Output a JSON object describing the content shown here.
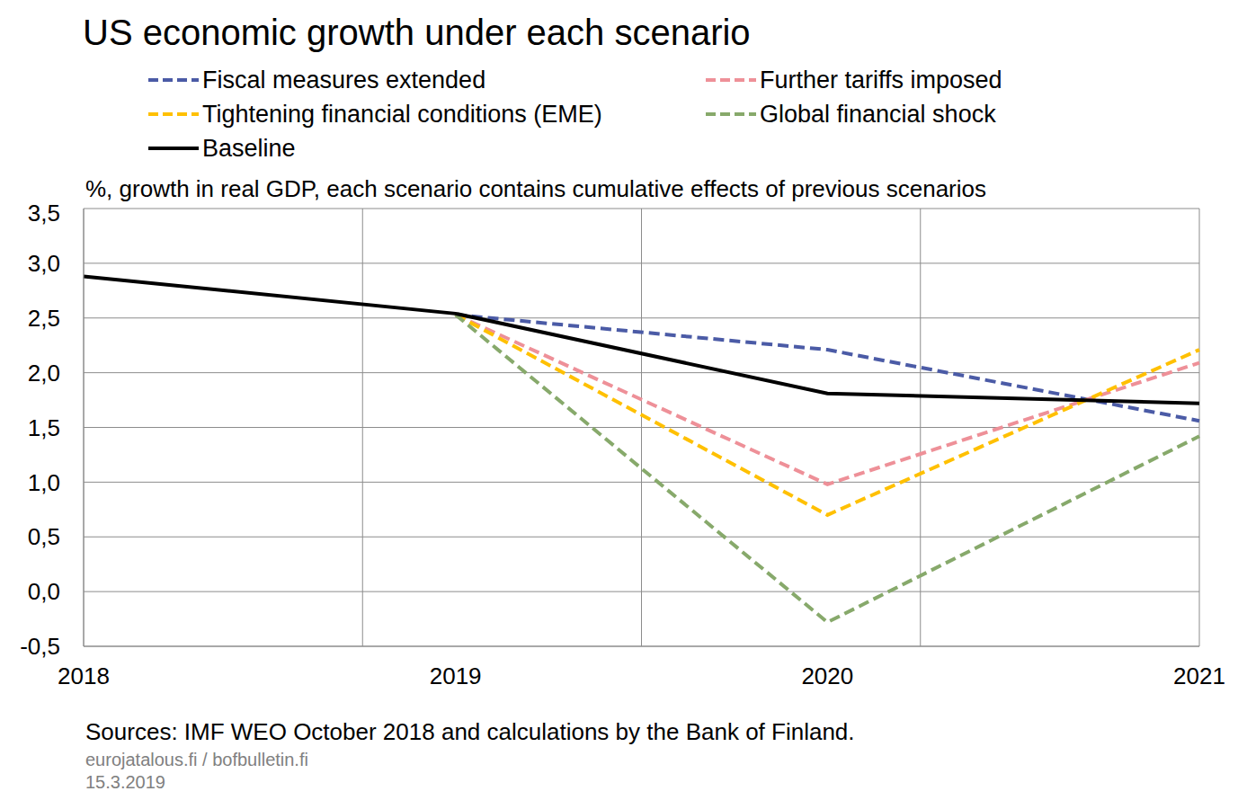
{
  "chart_data": {
    "type": "line",
    "title": "US economic growth under each scenario",
    "subtitle": "%, growth in real GDP, each scenario contains cumulative effects of previous scenarios",
    "source": "Sources: IMF WEO October 2018 and calculations by the Bank of Finland.",
    "footer": [
      "eurojatalous.fi / bofbulletin.fi",
      "15.3.2019"
    ],
    "categories": [
      "2018",
      "2019",
      "2020",
      "2021"
    ],
    "series": [
      {
        "name": "Fiscal measures extended",
        "color": "#4B5BA6",
        "line_style": "dashed",
        "values": [
          null,
          2.53,
          2.21,
          1.56
        ]
      },
      {
        "name": "Further tariffs imposed",
        "color": "#EE9098",
        "line_style": "dashed",
        "values": [
          null,
          2.53,
          0.98,
          2.09
        ]
      },
      {
        "name": "Tightening financial conditions (EME)",
        "color": "#FFC000",
        "line_style": "dashed",
        "values": [
          null,
          2.53,
          0.7,
          2.21
        ]
      },
      {
        "name": "Global financial shock",
        "color": "#87A96B",
        "line_style": "dashed",
        "values": [
          null,
          2.53,
          -0.28,
          1.42
        ]
      },
      {
        "name": "Baseline",
        "color": "#000000",
        "line_style": "solid",
        "values": [
          2.88,
          2.54,
          1.81,
          1.72
        ]
      }
    ],
    "ylim": [
      -0.5,
      3.5
    ],
    "yticks": [
      {
        "value": -0.5,
        "label": "-0,5"
      },
      {
        "value": 0,
        "label": "0,0"
      },
      {
        "value": 0.5,
        "label": "0,5"
      },
      {
        "value": 1,
        "label": "1,0"
      },
      {
        "value": 1.5,
        "label": "1,5"
      },
      {
        "value": 2,
        "label": "2,0"
      },
      {
        "value": 2.5,
        "label": "2,5"
      },
      {
        "value": 3,
        "label": "3,0"
      },
      {
        "value": 3.5,
        "label": "3,5"
      }
    ],
    "grid": true,
    "legend": "top"
  }
}
